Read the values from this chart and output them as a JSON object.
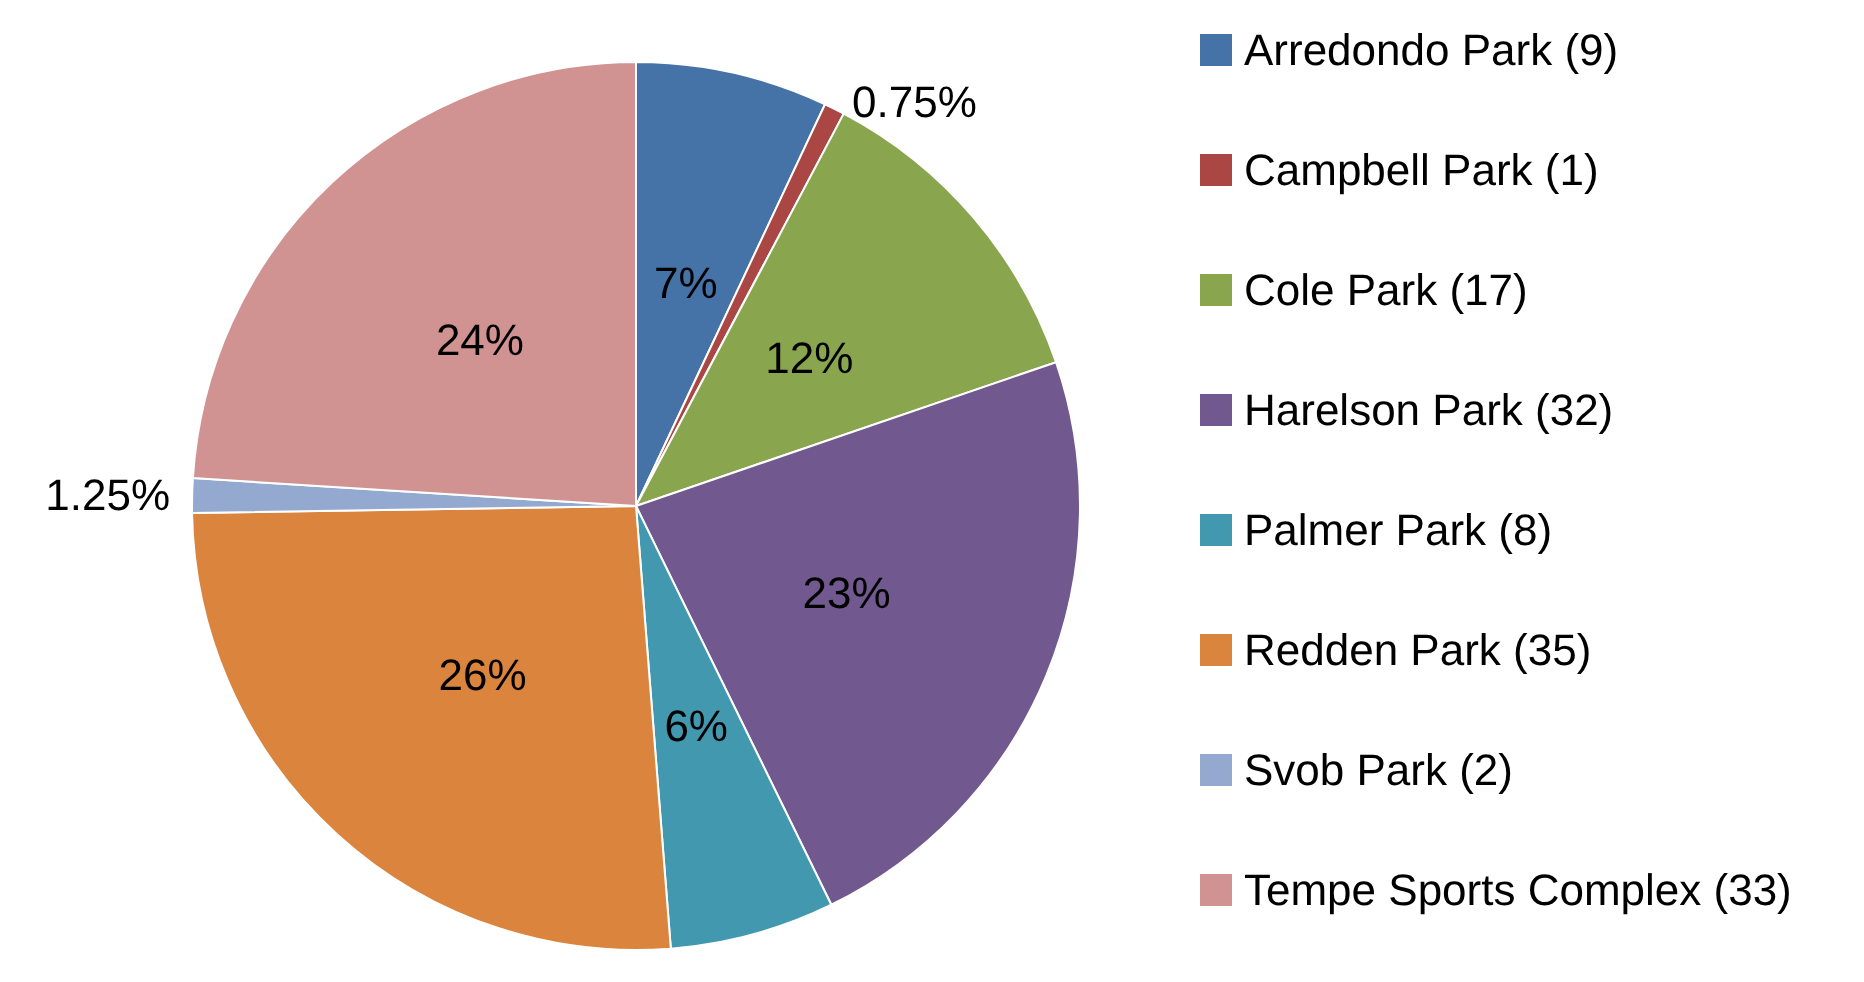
{
  "chart_data": {
    "type": "pie",
    "categories": [
      "Arredondo Park (9)",
      "Campbell Park (1)",
      "Cole Park (17)",
      "Harelson Park (32)",
      "Palmer Park (8)",
      "Redden Park (35)",
      "Svob Park (2)",
      "Tempe Sports Complex (33)"
    ],
    "values": [
      7,
      0.75,
      12,
      23,
      6,
      26,
      1.25,
      24
    ],
    "colors": [
      "#4572a7",
      "#aa4643",
      "#89a54e",
      "#71588f",
      "#4198af",
      "#db843d",
      "#93a9cf",
      "#d19392"
    ],
    "value_labels": [
      "7%",
      "0.75%",
      "12%",
      "23%",
      "6%",
      "26%",
      "1.25%",
      "24%"
    ],
    "legend": "right"
  }
}
